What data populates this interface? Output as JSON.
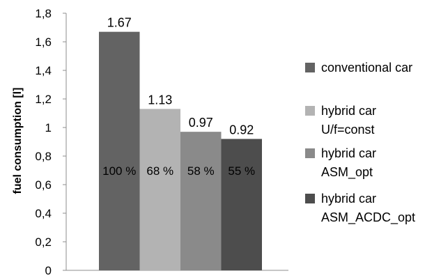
{
  "chart_data": {
    "type": "bar",
    "title": "",
    "xlabel": "",
    "ylabel": "fuel consumption [l]",
    "ylim": [
      0,
      1.8
    ],
    "yticks": [
      "0",
      "0,2",
      "0,4",
      "0,6",
      "0,8",
      "1",
      "1,2",
      "1,4",
      "1,6",
      "1,8"
    ],
    "grid": false,
    "legend_position": "right",
    "series": [
      {
        "name": "conventional car",
        "values": [
          1.67
        ],
        "label": "1.67",
        "percent": "100 %",
        "color": "#636363"
      },
      {
        "name": "hybrid car U/f=const",
        "values": [
          1.13
        ],
        "label": "1.13",
        "percent": "68 %",
        "color": "#b3b3b3"
      },
      {
        "name": "hybrid car ASM_opt",
        "values": [
          0.97
        ],
        "label": "0.97",
        "percent": "58 %",
        "color": "#8a8a8a"
      },
      {
        "name": "hybrid car ASM_ACDC_opt",
        "values": [
          0.92
        ],
        "label": "0.92",
        "percent": "55 %",
        "color": "#4d4d4d"
      }
    ],
    "legend": [
      {
        "lines": [
          "conventional car"
        ]
      },
      {
        "lines": [
          "hybrid car",
          "U/f=const"
        ]
      },
      {
        "lines": [
          "hybrid car",
          "ASM_opt"
        ]
      },
      {
        "lines": [
          "hybrid car",
          "ASM_ACDC_opt"
        ]
      }
    ]
  }
}
